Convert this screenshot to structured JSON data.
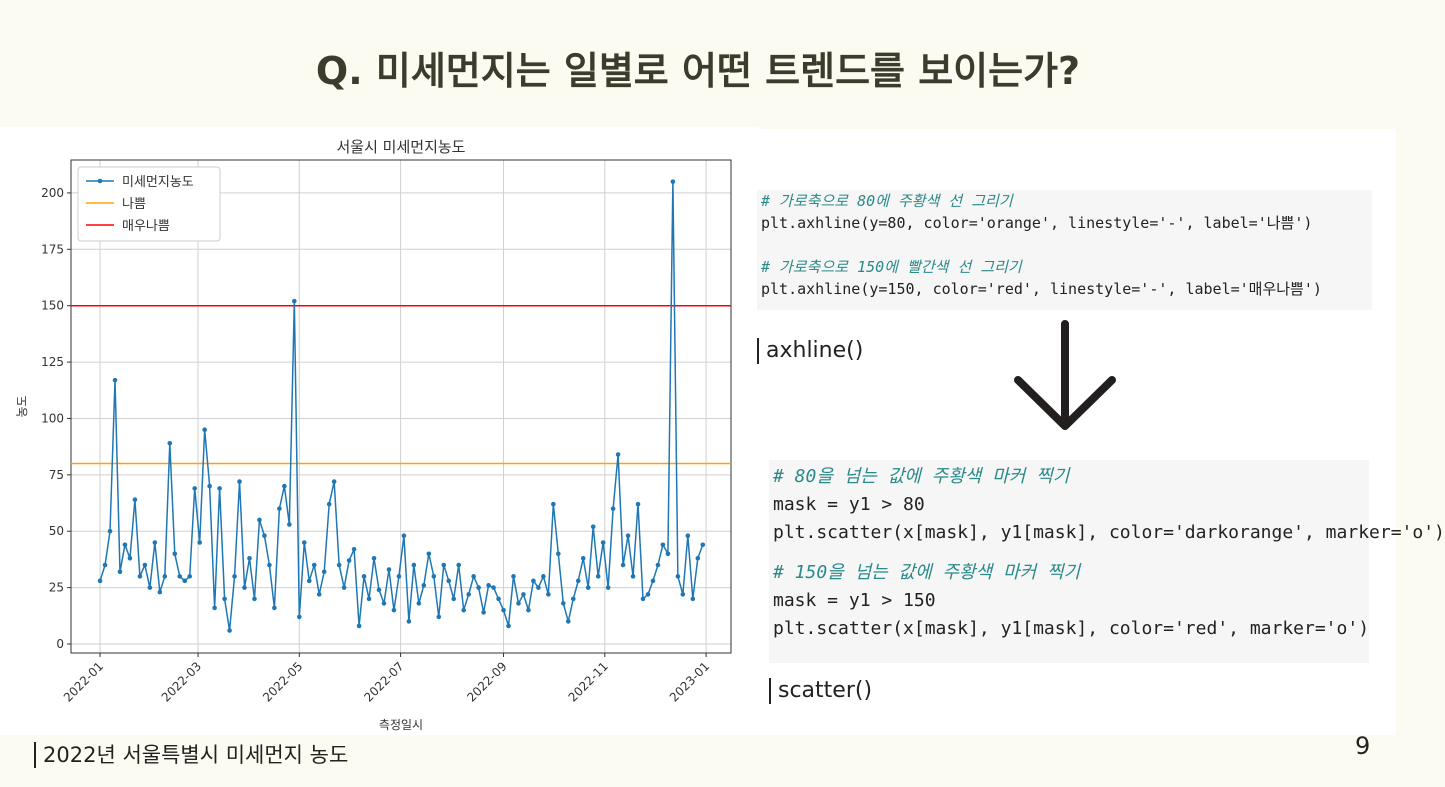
{
  "title": "Q. 미세먼지는 일별로 어떤 트렌드를 보이는가?",
  "chart_data": {
    "type": "line",
    "title": "서울시 미세먼지농도",
    "xlabel": "측정일시",
    "ylabel": "농도",
    "series": [
      {
        "name": "미세먼지농도",
        "color": "#1f77b4",
        "x": [
          0,
          3,
          6,
          9,
          12,
          15,
          18,
          21,
          24,
          27,
          30,
          33,
          36,
          39,
          42,
          45,
          48,
          51,
          54,
          57,
          60,
          63,
          66,
          69,
          72,
          75,
          78,
          81,
          84,
          87,
          90,
          93,
          96,
          99,
          102,
          105,
          108,
          111,
          114,
          117,
          120,
          123,
          126,
          129,
          132,
          135,
          138,
          141,
          144,
          147,
          150,
          153,
          156,
          159,
          162,
          165,
          168,
          171,
          174,
          177,
          180,
          183,
          186,
          189,
          192,
          195,
          198,
          201,
          204,
          207,
          210,
          213,
          216,
          219,
          222,
          225,
          228,
          231,
          234,
          237,
          240,
          243,
          246,
          249,
          252,
          255,
          258,
          261,
          264,
          267,
          270,
          273,
          276,
          279,
          282,
          285,
          288,
          291,
          294,
          297,
          300,
          303,
          306,
          309,
          312,
          315,
          318,
          321,
          324,
          327,
          330,
          333,
          336,
          339,
          342,
          345,
          348,
          351,
          354,
          357,
          360,
          363
        ],
        "values": [
          28,
          35,
          50,
          117,
          32,
          44,
          38,
          64,
          30,
          35,
          25,
          45,
          23,
          30,
          89,
          40,
          30,
          28,
          30,
          69,
          45,
          95,
          70,
          16,
          69,
          20,
          6,
          30,
          72,
          25,
          38,
          20,
          55,
          48,
          35,
          16,
          60,
          70,
          53,
          152,
          12,
          45,
          28,
          35,
          22,
          32,
          62,
          72,
          35,
          25,
          37,
          42,
          8,
          30,
          20,
          38,
          24,
          18,
          33,
          15,
          30,
          48,
          10,
          35,
          18,
          26,
          40,
          30,
          12,
          35,
          28,
          20,
          35,
          15,
          22,
          30,
          25,
          14,
          26,
          25,
          20,
          15,
          8,
          30,
          18,
          22,
          15,
          28,
          25,
          30,
          22,
          62,
          40,
          18,
          10,
          20,
          28,
          38,
          25,
          52,
          30,
          45,
          25,
          60,
          84,
          35,
          48,
          30,
          62,
          20,
          22,
          28,
          35,
          44,
          40,
          205,
          30,
          22,
          48,
          20,
          38,
          44
        ]
      }
    ],
    "reference_lines": [
      {
        "name": "나쁨",
        "value": 80,
        "color": "orange"
      },
      {
        "name": "매우나쁨",
        "value": 150,
        "color": "red"
      }
    ],
    "xlim": [
      -17.5,
      380
    ],
    "ylim": [
      -4,
      214.6
    ],
    "xticks": [
      {
        "value": 0,
        "label": "2022-01"
      },
      {
        "value": 59,
        "label": "2022-03"
      },
      {
        "value": 120,
        "label": "2022-05"
      },
      {
        "value": 181,
        "label": "2022-07"
      },
      {
        "value": 243,
        "label": "2022-09"
      },
      {
        "value": 304,
        "label": "2022-11"
      },
      {
        "value": 365,
        "label": "2023-01"
      }
    ],
    "yticks": [
      0,
      25,
      50,
      75,
      100,
      125,
      150,
      175,
      200
    ],
    "grid": true,
    "legend": "upper left"
  },
  "code_blocks": [
    [
      [
        "# 가로축으로 80에 주황색 선 그리기",
        "plt.axhline(y=80, color='orange', linestyle='-', label='나쁨')"
      ],
      [
        "# 가로축으로 150에 빨간색 선 그리기",
        "plt.axhline(y=150, color='red', linestyle='-', label='매우나쁨')"
      ]
    ],
    [
      [
        "# 80을 넘는 값에 주황색 마커 찍기",
        "mask = y1 > 80",
        "plt.scatter(x[mask], y1[mask], color='darkorange', marker='o')"
      ],
      [
        "# 150을 넘는 값에 주황색 마커 찍기",
        "mask = y1 > 150",
        "plt.scatter(x[mask], y1[mask], color='red', marker='o')"
      ]
    ]
  ],
  "captions": [
    "axhline()",
    "scatter()"
  ],
  "footer": "2022년 서울특별시 미세먼지 농도",
  "page_number": "9"
}
